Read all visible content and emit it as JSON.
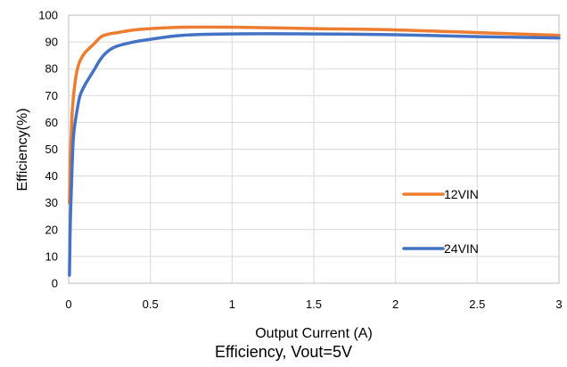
{
  "chart_data": {
    "type": "line",
    "title": "Efficiency, Vout=5V",
    "xlabel": "Output Current (A)",
    "ylabel": "Efficiency(%)",
    "xlim": [
      0,
      3
    ],
    "ylim": [
      0,
      100
    ],
    "xticks": [
      "0",
      "0.5",
      "1",
      "1.5",
      "2",
      "2.5",
      "3"
    ],
    "yticks": [
      "0",
      "10",
      "20",
      "30",
      "40",
      "50",
      "60",
      "70",
      "80",
      "90",
      "100"
    ],
    "grid": true,
    "legend_position": "right",
    "series": [
      {
        "name": "12VIN",
        "color": "#ED7D31",
        "x": [
          0.005,
          0.01,
          0.02,
          0.03,
          0.05,
          0.07,
          0.1,
          0.15,
          0.2,
          0.25,
          0.3,
          0.4,
          0.5,
          0.7,
          1.0,
          1.5,
          2.0,
          2.5,
          3.0
        ],
        "y": [
          30,
          45,
          62,
          70,
          79,
          83,
          86,
          89,
          92,
          93,
          93.5,
          94.5,
          95,
          95.5,
          95.5,
          95,
          94.5,
          93.5,
          92.5
        ]
      },
      {
        "name": "24VIN",
        "color": "#4472C4",
        "x": [
          0.005,
          0.01,
          0.02,
          0.03,
          0.05,
          0.07,
          0.1,
          0.15,
          0.2,
          0.25,
          0.3,
          0.4,
          0.5,
          0.7,
          1.0,
          1.5,
          2.0,
          2.5,
          3.0
        ],
        "y": [
          3,
          22,
          42,
          55,
          64,
          70,
          74,
          79,
          84,
          87,
          88.5,
          90,
          91,
          92.5,
          93,
          93,
          92.7,
          92,
          91.5
        ]
      }
    ]
  }
}
